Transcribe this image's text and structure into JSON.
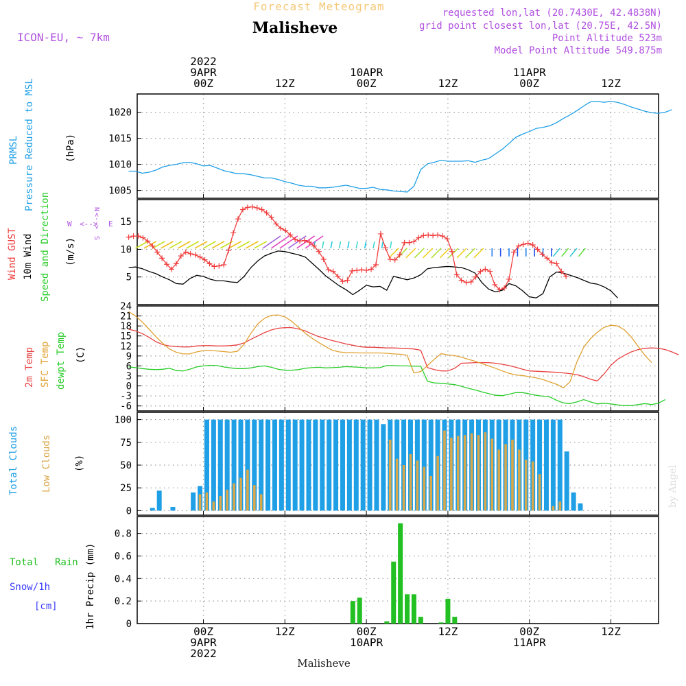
{
  "header": {
    "subtitle": "Forecast Meteogram",
    "station": "Malisheve",
    "model": "ICON-EU, ~ 7km",
    "requested": "requested lon,lat (20.7430E, 42.4838N)",
    "grid": "grid point closest lon,lat (20.75E, 42.5N)",
    "altitude": "Point Altitude 523m",
    "model_altitude": "Model Point Altitude 549.875m"
  },
  "footer": {
    "station": "Malisheve",
    "credit": "by Angel"
  },
  "time_axis": {
    "top_labels": [
      {
        "h": 0,
        "lines": [
          "2022",
          "9APR",
          "00Z"
        ]
      },
      {
        "h": 12,
        "lines": [
          "12Z"
        ]
      },
      {
        "h": 24,
        "lines": [
          "10APR",
          "00Z"
        ]
      },
      {
        "h": 36,
        "lines": [
          "12Z"
        ]
      },
      {
        "h": 48,
        "lines": [
          "11APR",
          "00Z"
        ]
      },
      {
        "h": 60,
        "lines": [
          "12Z"
        ]
      }
    ],
    "bottom_labels": [
      {
        "h": 0,
        "lines": [
          "00Z",
          "9APR",
          "2022"
        ]
      },
      {
        "h": 12,
        "lines": [
          "12Z"
        ]
      },
      {
        "h": 24,
        "lines": [
          "00Z",
          "10APR"
        ]
      },
      {
        "h": 36,
        "lines": [
          "12Z"
        ]
      },
      {
        "h": 48,
        "lines": [
          "00Z",
          "11APR"
        ]
      },
      {
        "h": 60,
        "lines": [
          "12Z"
        ]
      }
    ]
  },
  "colors": {
    "pressure": "#1E9FE6",
    "gust": "#F03C3C",
    "wind": "#000000",
    "temp2m": "#E84040",
    "sfc": "#E0A030",
    "dew": "#28CC28",
    "total_cloud": "#1E9FE6",
    "low_cloud": "#D9A84A",
    "rain": "#22C022",
    "snow": "#3C3CFF",
    "purple": "#B050E0",
    "grid": "#999999"
  },
  "chart_data": [
    {
      "type": "line",
      "panel": "pressure",
      "ylabels": [
        "PRMSL",
        "Pressure Reduced to MSL",
        "(hPa)"
      ],
      "ylim": [
        1003.5,
        1023.5
      ],
      "yticks": [
        1005,
        1010,
        1015,
        1020
      ],
      "x_hours_start": -11,
      "x_hours_step": 1,
      "series": [
        {
          "name": "PRMSL",
          "values": [
            1008.7,
            1008.7,
            1008.3,
            1008.5,
            1008.9,
            1009.5,
            1009.8,
            1010.0,
            1010.3,
            1010.4,
            1010.1,
            1009.7,
            1009.8,
            1009.3,
            1008.8,
            1008.5,
            1008.2,
            1008.2,
            1008.0,
            1007.7,
            1007.4,
            1007.4,
            1007.1,
            1006.7,
            1006.4,
            1006.0,
            1005.8,
            1005.8,
            1005.5,
            1005.5,
            1005.6,
            1005.8,
            1006.0,
            1005.7,
            1005.4,
            1005.4,
            1005.6,
            1005.2,
            1005.1,
            1004.9,
            1004.8,
            1004.7,
            1005.8,
            1009.0,
            1010.1,
            1010.4,
            1010.8,
            1010.6,
            1010.6,
            1010.6,
            1010.7,
            1010.4,
            1010.8,
            1011.1,
            1012.0,
            1012.9,
            1014.0,
            1015.2,
            1015.8,
            1016.3,
            1016.9,
            1017.1,
            1017.4,
            1018.0,
            1018.8,
            1019.5,
            1020.3,
            1021.2,
            1022.0,
            1022.1,
            1021.9,
            1022.1,
            1021.9,
            1021.5,
            1021.0,
            1020.6,
            1020.2,
            1019.9,
            1019.8,
            1020.0,
            1020.5
          ]
        }
      ]
    },
    {
      "type": "line",
      "panel": "wind",
      "ylabels": [
        "Wind GUST",
        "10m Wind",
        "Speed and Direction",
        "(m/s)"
      ],
      "ylim": [
        0,
        19
      ],
      "yticks": [
        5,
        10,
        15
      ],
      "x_hours_start": -11,
      "x_hours_step": 1,
      "compass": [
        "N",
        "E",
        "S",
        "W"
      ],
      "series": [
        {
          "name": "Wind GUST",
          "values": [
            12.2,
            12.4,
            12.4,
            12.1,
            11.5,
            10.6,
            9.5,
            8.4,
            7.3,
            6.4,
            7.4,
            8.8,
            9.5,
            9.2,
            9.0,
            8.6,
            8.1,
            7.4,
            6.9,
            7.0,
            7.2,
            9.8,
            13.0,
            15.5,
            17.2,
            17.6,
            17.7,
            17.5,
            17.2,
            16.6,
            15.8,
            14.6,
            13.8,
            13.4,
            12.6,
            11.8,
            11.5,
            11.6,
            11.3,
            10.6,
            9.6,
            8.2,
            6.3,
            6.0,
            5.1,
            4.2,
            4.4,
            6.1,
            6.2,
            6.3,
            6.2,
            6.4,
            7.2,
            12.8,
            10.3,
            8.2,
            8.1,
            9.0,
            11.2,
            11.2,
            11.4,
            12.1,
            12.5,
            12.6,
            12.5,
            12.6,
            12.4,
            11.9,
            9.6,
            5.4,
            4.4,
            4.0,
            4.1,
            5.0,
            6.0,
            6.4,
            6.0,
            3.6,
            2.7,
            3.0,
            4.6,
            9.5,
            10.6,
            10.9,
            11.1,
            10.8,
            10.0,
            9.1,
            8.4,
            7.6,
            7.4,
            6.0,
            5.1
          ],
          "x_hours_start": -11,
          "x_hours_step": 0.7
        },
        {
          "name": "10m Wind",
          "values": [
            6.7,
            6.8,
            6.5,
            6.0,
            5.6,
            5.0,
            4.5,
            3.8,
            3.7,
            4.7,
            5.3,
            5.1,
            4.6,
            4.3,
            4.3,
            4.1,
            4.0,
            5.1,
            6.7,
            7.9,
            8.8,
            9.3,
            9.7,
            9.6,
            9.3,
            9.0,
            8.6,
            7.5,
            6.4,
            5.2,
            4.3,
            3.4,
            2.7,
            1.8,
            2.6,
            3.5,
            3.2,
            3.3,
            2.6,
            5.1,
            4.8,
            4.5,
            4.8,
            5.4,
            6.5,
            6.7,
            6.8,
            6.9,
            6.8,
            6.7,
            6.3,
            5.7,
            4.0,
            2.8,
            2.3,
            2.6,
            3.8,
            3.4,
            2.5,
            1.4,
            1.2,
            2.0,
            5.0,
            5.9,
            5.7,
            5.3,
            4.9,
            4.4,
            3.9,
            3.7,
            3.2,
            2.5,
            1.2
          ],
          "x_hours_start": -11,
          "x_hours_step": 1.0
        }
      ]
    },
    {
      "type": "line",
      "panel": "temperature",
      "ylabels": [
        "2m Temp",
        "SFC Temp",
        "dewpt Temp",
        "(C)"
      ],
      "ylim": [
        -7.5,
        24
      ],
      "yticks": [
        -6,
        -3,
        0,
        3,
        6,
        9,
        12,
        15,
        18,
        21,
        24
      ],
      "x_hours_start": -11,
      "x_hours_step": 1,
      "series": [
        {
          "name": "2m Temp",
          "values": [
            17.0,
            16.5,
            15.7,
            14.6,
            13.3,
            12.4,
            12.0,
            11.8,
            11.7,
            11.7,
            12.0,
            12.1,
            12.1,
            12.0,
            12.0,
            12.1,
            12.3,
            12.9,
            14.0,
            15.0,
            16.0,
            16.8,
            17.3,
            17.5,
            17.5,
            17.1,
            16.5,
            15.6,
            14.8,
            14.2,
            13.6,
            13.1,
            12.6,
            12.2,
            11.8,
            11.6,
            11.6,
            11.5,
            11.4,
            11.4,
            11.3,
            11.2,
            11.1,
            10.7,
            5.5,
            4.9,
            4.5,
            4.5,
            5.3,
            6.8,
            6.9,
            7.0,
            7.0,
            7.0,
            6.8,
            6.5,
            6.1,
            5.6,
            5.0,
            4.5,
            4.4,
            4.3,
            4.2,
            4.1,
            3.9,
            3.7,
            3.4,
            2.8,
            2.0,
            1.5,
            3.6,
            6.2,
            8.0,
            9.2,
            10.2,
            10.9,
            11.3,
            11.4,
            11.3,
            10.9,
            10.2,
            9.3
          ]
        },
        {
          "name": "SFC Temp",
          "values": [
            22.3,
            21.0,
            19.2,
            17.0,
            14.8,
            12.8,
            11.1,
            10.1,
            9.6,
            9.6,
            10.2,
            10.6,
            10.7,
            10.5,
            10.3,
            10.1,
            10.4,
            12.5,
            15.8,
            18.6,
            20.3,
            21.2,
            21.3,
            20.7,
            19.4,
            17.6,
            15.8,
            14.3,
            13.0,
            11.8,
            10.7,
            10.2,
            10.0,
            10.0,
            9.9,
            9.9,
            9.9,
            9.9,
            9.8,
            9.6,
            9.5,
            9.2,
            3.9,
            4.3,
            6.1,
            8.0,
            9.7,
            9.3,
            9.1,
            8.6,
            8.0,
            7.4,
            6.7,
            6.0,
            5.3,
            4.5,
            3.8,
            3.3,
            3.1,
            2.8,
            2.4,
            1.9,
            1.2,
            0.5,
            -0.6,
            1.3,
            7.2,
            11.6,
            14.2,
            16.1,
            17.6,
            18.2,
            18.0,
            16.8,
            14.7,
            11.9,
            9.2,
            7.0
          ]
        },
        {
          "name": "dewpt Temp",
          "values": [
            5.7,
            5.5,
            5.2,
            5.0,
            4.9,
            5.0,
            5.3,
            4.6,
            4.5,
            5.0,
            5.7,
            6.0,
            6.2,
            6.1,
            5.7,
            5.4,
            5.2,
            5.2,
            5.4,
            5.8,
            6.0,
            5.6,
            5.0,
            4.7,
            4.7,
            4.9,
            5.3,
            5.5,
            5.6,
            5.4,
            5.5,
            5.6,
            5.8,
            5.7,
            5.6,
            5.4,
            5.4,
            5.5,
            6.1,
            6.1,
            6.0,
            6.0,
            5.9,
            5.9,
            1.4,
            0.9,
            0.8,
            0.6,
            0.4,
            -0.1,
            -0.7,
            -1.2,
            -1.8,
            -2.3,
            -2.8,
            -2.9,
            -2.5,
            -2.0,
            -2.0,
            -2.4,
            -2.8,
            -3.1,
            -3.3,
            -4.3,
            -5.1,
            -5.3,
            -4.8,
            -4.1,
            -4.8,
            -5.4,
            -5.2,
            -5.4,
            -5.7,
            -5.9,
            -5.9,
            -5.6,
            -5.3,
            -5.6,
            -5.2,
            -4.1
          ]
        }
      ]
    },
    {
      "type": "bar",
      "panel": "clouds",
      "ylabels": [
        "Total Clouds",
        "Low Clouds",
        "(%)"
      ],
      "ylim": [
        -5,
        108
      ],
      "yticks": [
        0,
        25,
        50,
        75,
        100
      ],
      "x_hours_start": -7.5,
      "x_hours_step": 1,
      "series": [
        {
          "name": "Total Clouds",
          "values": [
            3,
            22,
            0,
            4,
            0,
            0,
            20,
            27,
            100,
            100,
            100,
            100,
            100,
            100,
            100,
            100,
            100,
            100,
            100,
            100,
            100,
            100,
            100,
            100,
            100,
            100,
            100,
            100,
            100,
            100,
            100,
            100,
            100,
            100,
            95,
            100,
            100,
            100,
            100,
            100,
            100,
            100,
            100,
            100,
            100,
            100,
            100,
            100,
            100,
            100,
            100,
            100,
            100,
            100,
            100,
            100,
            100,
            100,
            100,
            100,
            100,
            65,
            20,
            8,
            0,
            0,
            0,
            0,
            0,
            0,
            0,
            0,
            0,
            0,
            0,
            0,
            0,
            0,
            0,
            0,
            0,
            14,
            0,
            0,
            0,
            12,
            0,
            0
          ]
        },
        {
          "name": "Low Clouds",
          "values": [
            0,
            0,
            0,
            0,
            0,
            0,
            0,
            18,
            20,
            10,
            16,
            23,
            30,
            36,
            45,
            28,
            18,
            0,
            0,
            0,
            0,
            0,
            0,
            0,
            0,
            0,
            0,
            0,
            0,
            0,
            0,
            0,
            0,
            0,
            0,
            78,
            57,
            50,
            62,
            55,
            48,
            38,
            60,
            88,
            80,
            82,
            83,
            85,
            83,
            86,
            79,
            67,
            73,
            78,
            67,
            56,
            54,
            40,
            0,
            5,
            10,
            0,
            0,
            0,
            0,
            0,
            0,
            0,
            0,
            0,
            0,
            0,
            0,
            0,
            0,
            0,
            0,
            0,
            0,
            0,
            0,
            14,
            0,
            0,
            0,
            12,
            0,
            0
          ]
        }
      ]
    },
    {
      "type": "bar",
      "panel": "precipitation",
      "ylabels": [
        "1hr Precip (mm)"
      ],
      "left_labels": [
        "Total",
        "Rain",
        "Snow/1h",
        "[cm]"
      ],
      "ylim": [
        0,
        0.95
      ],
      "yticks": [
        0,
        0.2,
        0.4,
        0.6,
        0.8
      ],
      "series": [
        {
          "name": "Total Rain",
          "points": [
            [
              22,
              0.2
            ],
            [
              23,
              0.23
            ],
            [
              27,
              0.02
            ],
            [
              28,
              0.55
            ],
            [
              29,
              0.89
            ],
            [
              30,
              0.26
            ],
            [
              31,
              0.26
            ],
            [
              32,
              0.06
            ],
            [
              35,
              0.01
            ],
            [
              36,
              0.22
            ],
            [
              37,
              0.06
            ]
          ]
        }
      ]
    }
  ]
}
